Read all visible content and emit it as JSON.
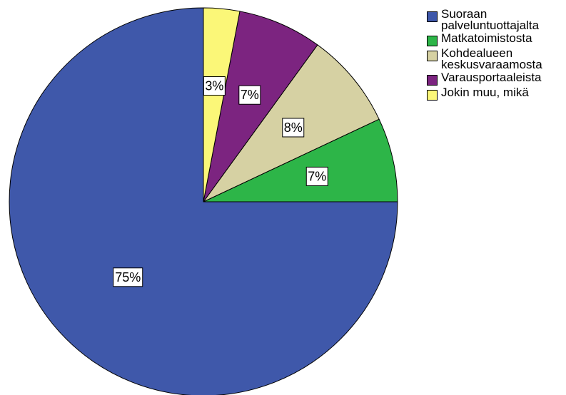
{
  "chart_data": {
    "type": "pie",
    "slices": [
      {
        "label": "Suoraan\npalveluntuottajalta",
        "value": 75,
        "value_label": "75%",
        "color": "#3f58aa"
      },
      {
        "label": "Matkatoimistosta",
        "value": 7,
        "value_label": "7%",
        "color": "#2db548"
      },
      {
        "label": "Kohdealueen\nkeskusvaraamosta",
        "value": 8,
        "value_label": "8%",
        "color": "#d6d1a3"
      },
      {
        "label": "Varausportaaleista",
        "value": 7,
        "value_label": "7%",
        "color": "#7c2480"
      },
      {
        "label": "Jokin muu, mikä",
        "value": 3,
        "value_label": "3%",
        "color": "#fbf778"
      }
    ],
    "start_angle": "12 o'clock",
    "direction": "clockwise",
    "legend_position": "top-right"
  }
}
